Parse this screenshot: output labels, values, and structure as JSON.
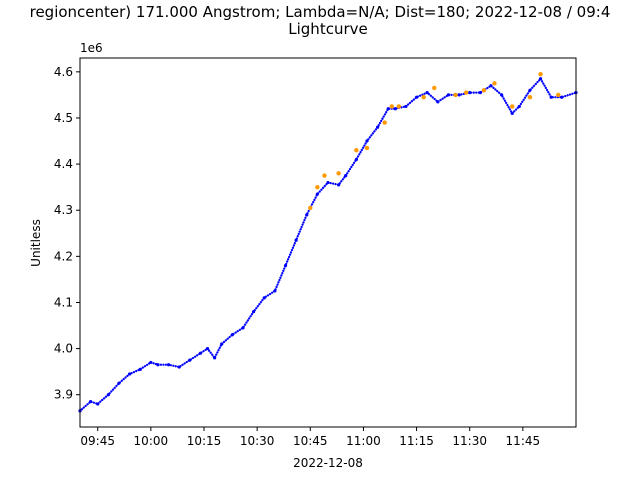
{
  "chart_data": {
    "type": "scatter",
    "title_line1": "regioncenter) 171.000 Angstrom; Lambda=N/A; Dist=180; 2022-12-08 / 09:4",
    "title_line2": "Lightcurve",
    "xlabel": "2022-12-08",
    "ylabel": "Unitless",
    "y_offset_label": "1e6",
    "x_range": [
      "09:40",
      "12:00"
    ],
    "ylim": [
      3.83,
      4.63
    ],
    "y_ticks": [
      3.9,
      4.0,
      4.1,
      4.2,
      4.3,
      4.4,
      4.5,
      4.6
    ],
    "y_tick_labels": [
      "3.9",
      "4.0",
      "4.1",
      "4.2",
      "4.3",
      "4.4",
      "4.5",
      "4.6"
    ],
    "x_ticks": [
      "09:45",
      "10:00",
      "10:15",
      "10:30",
      "10:45",
      "11:00",
      "11:15",
      "11:30",
      "11:45"
    ],
    "x_tick_labels": [
      "09:45",
      "10:00",
      "10:15",
      "10:30",
      "10:45",
      "11:00",
      "11:15",
      "11:30",
      "11:45"
    ],
    "grid": false,
    "colors": {
      "series": "#0000ff",
      "highlight": "#ff9900"
    },
    "series": [
      {
        "marker": "blue-dot",
        "x": [
          "09:40",
          "09:43",
          "09:45",
          "09:48",
          "09:51",
          "09:54",
          "09:57",
          "10:00",
          "10:02",
          "10:05",
          "10:08",
          "10:11",
          "10:14",
          "10:16",
          "10:18",
          "10:20",
          "10:23",
          "10:26",
          "10:29",
          "10:32",
          "10:35",
          "10:38",
          "10:41",
          "10:44",
          "10:47",
          "10:50",
          "10:53",
          "10:55",
          "10:58",
          "11:01",
          "11:04",
          "11:07",
          "11:09",
          "11:12",
          "11:15",
          "11:18",
          "11:21",
          "11:24",
          "11:27",
          "11:30",
          "11:33",
          "11:36",
          "11:39",
          "11:42",
          "11:44",
          "11:47",
          "11:50",
          "11:53",
          "11:56",
          "12:00"
        ],
        "values": [
          3.865,
          3.885,
          3.88,
          3.9,
          3.925,
          3.945,
          3.955,
          3.97,
          3.965,
          3.965,
          3.96,
          3.975,
          3.99,
          4.0,
          3.98,
          4.01,
          4.03,
          4.045,
          4.08,
          4.11,
          4.125,
          4.18,
          4.235,
          4.29,
          4.335,
          4.36,
          4.355,
          4.375,
          4.41,
          4.45,
          4.48,
          4.52,
          4.52,
          4.525,
          4.545,
          4.555,
          4.535,
          4.55,
          4.55,
          4.555,
          4.555,
          4.57,
          4.55,
          4.51,
          4.525,
          4.56,
          4.585,
          4.545,
          4.545,
          4.555
        ]
      },
      {
        "marker": "orange-dot",
        "x": [
          "10:45",
          "10:47",
          "10:49",
          "10:53",
          "10:58",
          "11:01",
          "11:06",
          "11:08",
          "11:10",
          "11:17",
          "11:20",
          "11:26",
          "11:29",
          "11:34",
          "11:37",
          "11:42",
          "11:47",
          "11:50",
          "11:55"
        ],
        "values": [
          4.305,
          4.35,
          4.375,
          4.38,
          4.43,
          4.435,
          4.49,
          4.525,
          4.525,
          4.545,
          4.565,
          4.55,
          4.555,
          4.56,
          4.575,
          4.525,
          4.545,
          4.595,
          4.55
        ]
      }
    ]
  }
}
